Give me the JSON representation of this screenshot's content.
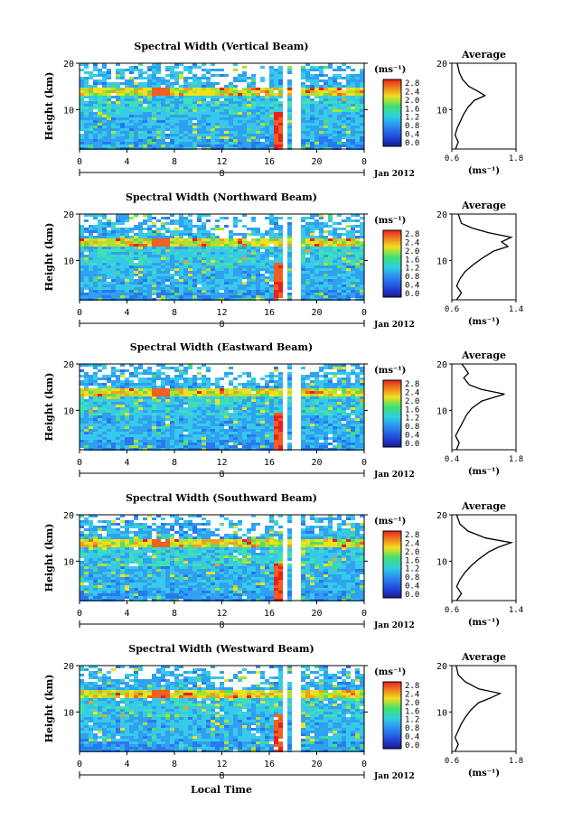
{
  "figure": {
    "xlabel": "Local Time",
    "units_label": "(ms⁻¹)",
    "average_title": "Average",
    "date_label": "Jan 2012",
    "day_marker": "8"
  },
  "chart_data": [
    {
      "type": "heatmap",
      "title": "Spectral Width (Vertical Beam)",
      "ylabel": "Height (km)",
      "x_ticks": [
        "0",
        "4",
        "8",
        "12",
        "16",
        "20",
        "0"
      ],
      "y_ticks": [
        "20",
        "10"
      ],
      "xlim": [
        0,
        24
      ],
      "ylim": [
        1.5,
        20
      ],
      "colorbar_ticks": [
        "2.8",
        "2.4",
        "2.0",
        "1.6",
        "1.2",
        "0.8",
        "0.4",
        "0.0"
      ],
      "colorbar_range": [
        0.0,
        2.8
      ],
      "average_profile": {
        "xlabel": "(ms⁻¹)",
        "x_ticks": [
          "0.6",
          "1.8"
        ],
        "xlim": [
          0.6,
          1.8
        ],
        "y_ticks": [
          "20",
          "10"
        ],
        "points": [
          [
            0.67,
            1.5
          ],
          [
            0.72,
            3
          ],
          [
            0.66,
            4.5
          ],
          [
            0.7,
            6
          ],
          [
            0.76,
            7.5
          ],
          [
            0.82,
            9
          ],
          [
            0.9,
            10.5
          ],
          [
            1.02,
            12
          ],
          [
            1.22,
            13
          ],
          [
            1.08,
            14
          ],
          [
            0.92,
            15
          ],
          [
            0.8,
            16.5
          ],
          [
            0.74,
            18
          ],
          [
            0.7,
            20
          ]
        ]
      }
    },
    {
      "type": "heatmap",
      "title": "Spectral Width (Northward Beam)",
      "ylabel": "Height (km)",
      "x_ticks": [
        "0",
        "4",
        "8",
        "12",
        "16",
        "20",
        "0"
      ],
      "y_ticks": [
        "20",
        "10"
      ],
      "xlim": [
        0,
        24
      ],
      "ylim": [
        1.5,
        20
      ],
      "colorbar_ticks": [
        "2.8",
        "2.4",
        "2.0",
        "1.6",
        "1.2",
        "0.8",
        "0.4",
        "0.0"
      ],
      "colorbar_range": [
        0.0,
        2.8
      ],
      "average_profile": {
        "xlabel": "(ms⁻¹)",
        "x_ticks": [
          "0.6",
          "1.4"
        ],
        "xlim": [
          0.6,
          1.4
        ],
        "y_ticks": [
          "20",
          "10"
        ],
        "points": [
          [
            0.66,
            1.5
          ],
          [
            0.72,
            3
          ],
          [
            0.66,
            4.5
          ],
          [
            0.7,
            6
          ],
          [
            0.76,
            7.5
          ],
          [
            0.86,
            9
          ],
          [
            0.98,
            10.5
          ],
          [
            1.12,
            12
          ],
          [
            1.3,
            13
          ],
          [
            1.22,
            14
          ],
          [
            1.34,
            15
          ],
          [
            1.05,
            16
          ],
          [
            0.85,
            17
          ],
          [
            0.72,
            18
          ],
          [
            0.68,
            20
          ]
        ]
      }
    },
    {
      "type": "heatmap",
      "title": "Spectral Width (Eastward Beam)",
      "ylabel": "Height (km)",
      "x_ticks": [
        "0",
        "4",
        "8",
        "12",
        "16",
        "20",
        "0"
      ],
      "y_ticks": [
        "20",
        "10"
      ],
      "xlim": [
        0,
        24
      ],
      "ylim": [
        1.5,
        20
      ],
      "colorbar_ticks": [
        "2.8",
        "2.4",
        "2.0",
        "1.6",
        "1.2",
        "0.8",
        "0.4",
        "0.0"
      ],
      "colorbar_range": [
        0.0,
        2.8
      ],
      "average_profile": {
        "xlabel": "(ms⁻¹)",
        "x_ticks": [
          "0.4",
          "1.8"
        ],
        "xlim": [
          0.4,
          1.8
        ],
        "y_ticks": [
          "20",
          "10"
        ],
        "points": [
          [
            0.5,
            1.5
          ],
          [
            0.56,
            3
          ],
          [
            0.48,
            4.5
          ],
          [
            0.56,
            6
          ],
          [
            0.64,
            7.5
          ],
          [
            0.72,
            9
          ],
          [
            0.84,
            10.5
          ],
          [
            1.05,
            12
          ],
          [
            1.55,
            13.5
          ],
          [
            1.05,
            14.5
          ],
          [
            0.78,
            15.5
          ],
          [
            0.66,
            17
          ],
          [
            0.76,
            18
          ],
          [
            0.62,
            20
          ]
        ]
      }
    },
    {
      "type": "heatmap",
      "title": "Spectral Width (Southward Beam)",
      "ylabel": "Height (km)",
      "x_ticks": [
        "0",
        "4",
        "8",
        "12",
        "16",
        "20",
        "0"
      ],
      "y_ticks": [
        "20",
        "10"
      ],
      "xlim": [
        0,
        24
      ],
      "ylim": [
        1.5,
        20
      ],
      "colorbar_ticks": [
        "2.8",
        "2.4",
        "2.0",
        "1.6",
        "1.2",
        "0.8",
        "0.4",
        "0.0"
      ],
      "colorbar_range": [
        0.0,
        2.8
      ],
      "average_profile": {
        "xlabel": "(ms⁻¹)",
        "x_ticks": [
          "0.6",
          "1.4"
        ],
        "xlim": [
          0.6,
          1.4
        ],
        "y_ticks": [
          "20",
          "10"
        ],
        "points": [
          [
            0.66,
            1.5
          ],
          [
            0.72,
            3
          ],
          [
            0.66,
            4.5
          ],
          [
            0.7,
            6
          ],
          [
            0.76,
            7.5
          ],
          [
            0.84,
            9
          ],
          [
            0.94,
            10.5
          ],
          [
            1.06,
            12
          ],
          [
            1.18,
            13
          ],
          [
            1.34,
            14
          ],
          [
            1.02,
            15
          ],
          [
            0.8,
            16.5
          ],
          [
            0.7,
            18
          ],
          [
            0.66,
            20
          ]
        ]
      }
    },
    {
      "type": "heatmap",
      "title": "Spectral Width (Westward Beam)",
      "ylabel": "Height (km)",
      "x_ticks": [
        "0",
        "4",
        "8",
        "12",
        "16",
        "20",
        "0"
      ],
      "y_ticks": [
        "20",
        "10"
      ],
      "xlim": [
        0,
        24
      ],
      "ylim": [
        1.5,
        20
      ],
      "colorbar_ticks": [
        "2.8",
        "2.4",
        "2.0",
        "1.6",
        "1.2",
        "0.8",
        "0.4",
        "0.0"
      ],
      "colorbar_range": [
        0.0,
        2.8
      ],
      "average_profile": {
        "xlabel": "(ms⁻¹)",
        "x_ticks": [
          "0.6",
          "1.8"
        ],
        "xlim": [
          0.6,
          1.8
        ],
        "y_ticks": [
          "20",
          "10"
        ],
        "points": [
          [
            0.66,
            1.5
          ],
          [
            0.72,
            3
          ],
          [
            0.66,
            4.5
          ],
          [
            0.72,
            6
          ],
          [
            0.78,
            7.5
          ],
          [
            0.86,
            9
          ],
          [
            0.96,
            10.5
          ],
          [
            1.1,
            12
          ],
          [
            1.32,
            13
          ],
          [
            1.5,
            14
          ],
          [
            1.1,
            15
          ],
          [
            0.85,
            16.5
          ],
          [
            0.72,
            18
          ],
          [
            0.68,
            20
          ]
        ]
      }
    }
  ]
}
